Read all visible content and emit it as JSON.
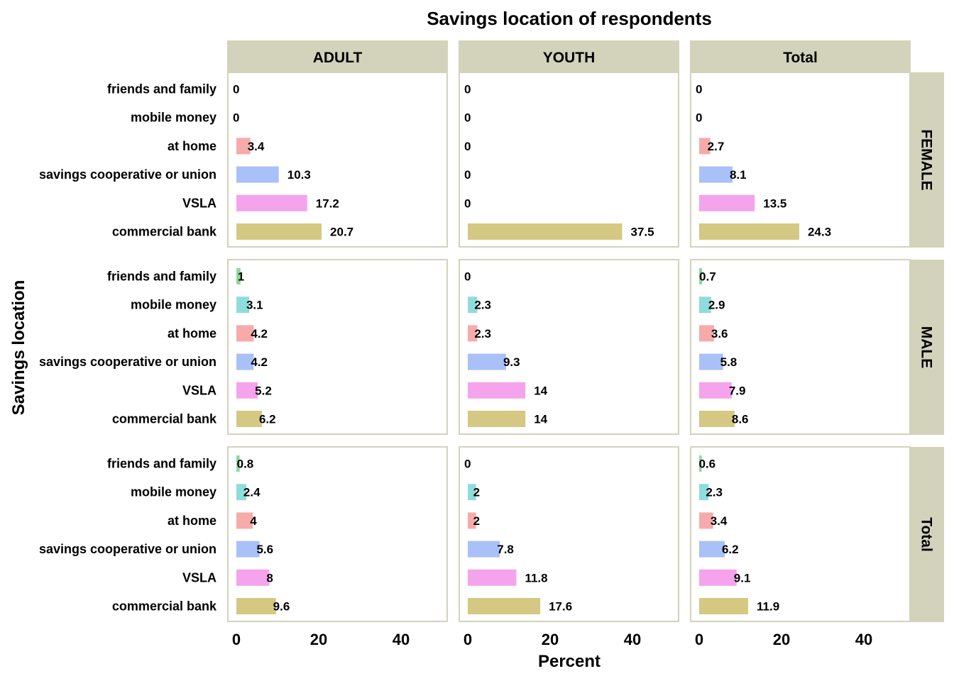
{
  "chart_data": {
    "type": "bar",
    "orientation": "horizontal",
    "title": "Savings location of respondents",
    "xlabel": "Percent",
    "ylabel": "Savings location",
    "xlim": [
      0,
      50
    ],
    "xticks": [
      0,
      20,
      40
    ],
    "categories": [
      "friends and family",
      "mobile money",
      "at home",
      "savings cooperative or union",
      "VSLA",
      "commercial bank"
    ],
    "category_colors": {
      "friends and family": "#8fd89b",
      "mobile money": "#8fdcdc",
      "at home": "#f7aaaa",
      "savings cooperative or union": "#a9c0f8",
      "VSLA": "#f5a3ec",
      "commercial bank": "#d4c882"
    },
    "panel_strip_color": "#d3d3bb",
    "panel_border_color": "#d3d3bb",
    "columns": [
      "ADULT",
      "YOUTH",
      "Total"
    ],
    "rows": [
      "FEMALE",
      "MALE",
      "Total"
    ],
    "panels": [
      {
        "row": "FEMALE",
        "column": "ADULT",
        "values": [
          0,
          0,
          3.4,
          10.3,
          17.2,
          20.7
        ]
      },
      {
        "row": "FEMALE",
        "column": "YOUTH",
        "values": [
          0,
          0,
          0,
          0,
          0,
          37.5
        ]
      },
      {
        "row": "FEMALE",
        "column": "Total",
        "values": [
          0,
          0,
          2.7,
          8.1,
          13.5,
          24.3
        ]
      },
      {
        "row": "MALE",
        "column": "ADULT",
        "values": [
          1,
          3.1,
          4.2,
          4.2,
          5.2,
          6.2
        ]
      },
      {
        "row": "MALE",
        "column": "YOUTH",
        "values": [
          0,
          2.3,
          2.3,
          9.3,
          14,
          14
        ]
      },
      {
        "row": "MALE",
        "column": "Total",
        "values": [
          0.7,
          2.9,
          3.6,
          5.8,
          7.9,
          8.6
        ]
      },
      {
        "row": "Total",
        "column": "ADULT",
        "values": [
          0.8,
          2.4,
          4,
          5.6,
          8,
          9.6
        ]
      },
      {
        "row": "Total",
        "column": "YOUTH",
        "values": [
          0,
          2,
          2,
          7.8,
          11.8,
          17.6
        ]
      },
      {
        "row": "Total",
        "column": "Total",
        "values": [
          0.6,
          2.3,
          3.4,
          6.2,
          9.1,
          11.9
        ]
      }
    ]
  }
}
